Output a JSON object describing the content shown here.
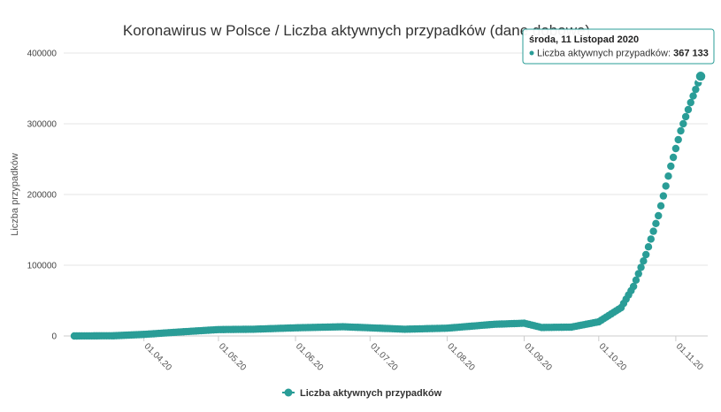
{
  "chart_data": {
    "type": "scatter",
    "title": "Koronawirus w Polsce / Liczba aktywnych przypadków (dane dobowe)",
    "ylabel": "Liczba przypadków",
    "xlabel": "",
    "ylim": [
      0,
      400000
    ],
    "yticks": [
      "0",
      "100000",
      "200000",
      "300000",
      "400000"
    ],
    "x_start_date": "2020-03-04",
    "x_end_date": "2020-11-11",
    "xtick_labels": [
      {
        "date": "2020-04-01",
        "label": "01.04.20"
      },
      {
        "date": "2020-05-01",
        "label": "01.05.20"
      },
      {
        "date": "2020-06-01",
        "label": "01.06.20"
      },
      {
        "date": "2020-07-01",
        "label": "01.07.20"
      },
      {
        "date": "2020-08-01",
        "label": "01.08.20"
      },
      {
        "date": "2020-09-01",
        "label": "01.09.20"
      },
      {
        "date": "2020-10-01",
        "label": "01.10.20"
      },
      {
        "date": "2020-11-01",
        "label": "01.11.20"
      }
    ],
    "grid": true,
    "legend_position": "bottom-center",
    "series_color": "#2a9d97",
    "series": [
      {
        "name": "Liczba aktywnych przypadków",
        "key_points": [
          {
            "date": "2020-03-04",
            "value": 0
          },
          {
            "date": "2020-03-20",
            "value": 300
          },
          {
            "date": "2020-04-01",
            "value": 2200
          },
          {
            "date": "2020-04-15",
            "value": 5500
          },
          {
            "date": "2020-05-01",
            "value": 9000
          },
          {
            "date": "2020-05-15",
            "value": 9500
          },
          {
            "date": "2020-06-01",
            "value": 11500
          },
          {
            "date": "2020-06-20",
            "value": 13000
          },
          {
            "date": "2020-07-01",
            "value": 11500
          },
          {
            "date": "2020-07-15",
            "value": 9500
          },
          {
            "date": "2020-08-01",
            "value": 11000
          },
          {
            "date": "2020-08-20",
            "value": 16500
          },
          {
            "date": "2020-09-01",
            "value": 18000
          },
          {
            "date": "2020-09-08",
            "value": 12000
          },
          {
            "date": "2020-09-20",
            "value": 12500
          },
          {
            "date": "2020-10-01",
            "value": 20000
          },
          {
            "date": "2020-10-10",
            "value": 40000
          },
          {
            "date": "2020-10-15",
            "value": 70000
          },
          {
            "date": "2020-10-20",
            "value": 115000
          },
          {
            "date": "2020-10-25",
            "value": 170000
          },
          {
            "date": "2020-10-30",
            "value": 240000
          },
          {
            "date": "2020-11-03",
            "value": 290000
          },
          {
            "date": "2020-11-07",
            "value": 330000
          },
          {
            "date": "2020-11-11",
            "value": 367133
          }
        ]
      }
    ],
    "tooltip": {
      "date": "środa, 11 Listopad 2020",
      "series_label": "Liczba aktywnych przypadków: ",
      "value": "367 133"
    }
  }
}
